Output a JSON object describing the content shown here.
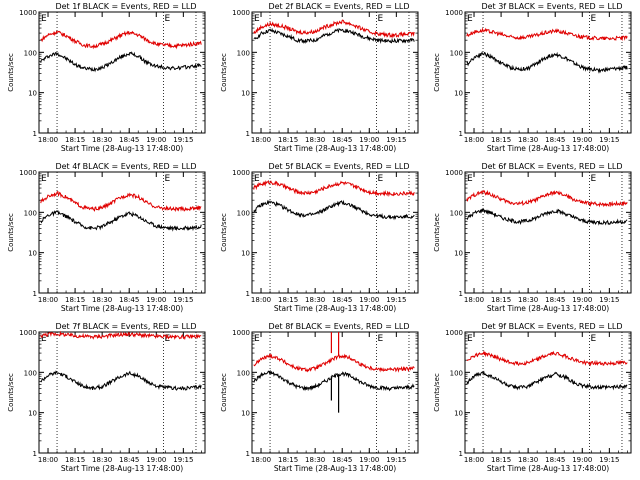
{
  "figure": {
    "type": "multi-panel line plot (3x3 detector rate grid)",
    "start_time_label": "Start Time (28-Aug-13 17:48:00)",
    "ylabel": "Counts/sec",
    "colors": {
      "events": "#000000",
      "lld": "#e00000",
      "axes": "#000000"
    }
  },
  "chart_data": [
    {
      "type": "line",
      "title": "Det 1f BLACK = Events, RED = LLD",
      "marker": "E",
      "xlabel": "Start Time (28-Aug-13 17:48:00)",
      "ylabel": "Counts/sec",
      "xlim": [
        "17:55",
        "19:27"
      ],
      "ylim": [
        1,
        1000
      ],
      "yscale": "log",
      "xticks": [
        "18:00",
        "18:15",
        "18:30",
        "18:45",
        "19:00",
        "19:15"
      ],
      "yticks": [
        "1",
        "10",
        "100",
        "1000"
      ],
      "vlines": [
        "18:05",
        "19:04",
        "19:22"
      ],
      "x": [
        "17:56",
        "18:00",
        "18:05",
        "18:10",
        "18:15",
        "18:20",
        "18:25",
        "18:30",
        "18:35",
        "18:40",
        "18:45",
        "18:50",
        "18:55",
        "19:00",
        "19:05",
        "19:10",
        "19:15",
        "19:20",
        "19:25"
      ],
      "series": [
        {
          "name": "Events",
          "values": [
            60,
            80,
            95,
            70,
            50,
            40,
            38,
            42,
            55,
            75,
            95,
            80,
            55,
            45,
            42,
            40,
            42,
            45,
            48
          ]
        },
        {
          "name": "LLD",
          "values": [
            200,
            270,
            320,
            260,
            190,
            150,
            140,
            160,
            200,
            260,
            310,
            270,
            200,
            160,
            150,
            145,
            150,
            160,
            170
          ]
        }
      ]
    },
    {
      "type": "line",
      "title": "Det 2f BLACK = Events, RED = LLD",
      "marker": "E",
      "xlabel": "Start Time (28-Aug-13 17:48:00)",
      "ylabel": "Counts/sec",
      "xlim": [
        "17:55",
        "19:27"
      ],
      "ylim": [
        1,
        1000
      ],
      "yscale": "log",
      "xticks": [
        "18:00",
        "18:15",
        "18:30",
        "18:45",
        "19:00",
        "19:15"
      ],
      "yticks": [
        "1",
        "10",
        "100",
        "1000"
      ],
      "vlines": [
        "18:05",
        "19:04",
        "19:22"
      ],
      "x": [
        "17:56",
        "18:00",
        "18:05",
        "18:10",
        "18:15",
        "18:20",
        "18:25",
        "18:30",
        "18:35",
        "18:40",
        "18:45",
        "18:50",
        "18:55",
        "19:00",
        "19:05",
        "19:10",
        "19:15",
        "19:20",
        "19:25"
      ],
      "series": [
        {
          "name": "Events",
          "values": [
            200,
            290,
            350,
            300,
            250,
            200,
            190,
            200,
            260,
            320,
            360,
            320,
            260,
            220,
            200,
            190,
            190,
            195,
            200
          ]
        },
        {
          "name": "LLD",
          "values": [
            300,
            420,
            500,
            460,
            400,
            320,
            310,
            330,
            420,
            500,
            580,
            500,
            400,
            320,
            290,
            270,
            270,
            280,
            290
          ]
        }
      ]
    },
    {
      "type": "line",
      "title": "Det 3f BLACK = Events, RED = LLD",
      "marker": "E",
      "xlabel": "Start Time (28-Aug-13 17:48:00)",
      "ylabel": "Counts/sec",
      "xlim": [
        "17:55",
        "19:27"
      ],
      "ylim": [
        1,
        1000
      ],
      "yscale": "log",
      "xticks": [
        "18:00",
        "18:15",
        "18:30",
        "18:45",
        "19:00",
        "19:15"
      ],
      "yticks": [
        "1",
        "10",
        "100",
        "1000"
      ],
      "vlines": [
        "18:05",
        "19:04",
        "19:22"
      ],
      "x": [
        "17:56",
        "18:00",
        "18:05",
        "18:10",
        "18:15",
        "18:20",
        "18:25",
        "18:30",
        "18:35",
        "18:40",
        "18:45",
        "18:50",
        "18:55",
        "19:00",
        "19:05",
        "19:10",
        "19:15",
        "19:20",
        "19:25"
      ],
      "series": [
        {
          "name": "Events",
          "values": [
            50,
            75,
            95,
            75,
            55,
            42,
            38,
            40,
            55,
            75,
            90,
            75,
            55,
            42,
            38,
            36,
            38,
            40,
            42
          ]
        },
        {
          "name": "LLD",
          "values": [
            260,
            320,
            350,
            320,
            280,
            240,
            230,
            240,
            270,
            310,
            340,
            310,
            270,
            240,
            230,
            220,
            220,
            225,
            230
          ]
        }
      ]
    },
    {
      "type": "line",
      "title": "Det 4f BLACK = Events, RED = LLD",
      "marker": "E",
      "xlabel": "Start Time (28-Aug-13 17:48:00)",
      "ylabel": "Counts/sec",
      "xlim": [
        "17:55",
        "19:27"
      ],
      "ylim": [
        1,
        1000
      ],
      "yscale": "log",
      "xticks": [
        "18:00",
        "18:15",
        "18:30",
        "18:45",
        "19:00",
        "19:15"
      ],
      "yticks": [
        "1",
        "10",
        "100",
        "1000"
      ],
      "vlines": [
        "18:05",
        "19:04",
        "19:22"
      ],
      "x": [
        "17:56",
        "18:00",
        "18:05",
        "18:10",
        "18:15",
        "18:20",
        "18:25",
        "18:30",
        "18:35",
        "18:40",
        "18:45",
        "18:50",
        "18:55",
        "19:00",
        "19:05",
        "19:10",
        "19:15",
        "19:20",
        "19:25"
      ],
      "series": [
        {
          "name": "Events",
          "values": [
            60,
            85,
            100,
            80,
            58,
            44,
            40,
            44,
            58,
            78,
            95,
            80,
            58,
            46,
            42,
            40,
            40,
            42,
            45
          ]
        },
        {
          "name": "LLD",
          "values": [
            180,
            250,
            300,
            240,
            170,
            130,
            120,
            130,
            170,
            230,
            280,
            240,
            170,
            135,
            125,
            120,
            120,
            125,
            130
          ]
        }
      ]
    },
    {
      "type": "line",
      "title": "Det 5f BLACK = Events, RED = LLD",
      "marker": "E",
      "xlabel": "Start Time (28-Aug-13 17:48:00)",
      "ylabel": "Counts/sec",
      "xlim": [
        "17:55",
        "19:27"
      ],
      "ylim": [
        1,
        1000
      ],
      "yscale": "log",
      "xticks": [
        "18:00",
        "18:15",
        "18:30",
        "18:45",
        "19:00",
        "19:15"
      ],
      "yticks": [
        "1",
        "10",
        "100",
        "1000"
      ],
      "vlines": [
        "18:05",
        "19:04",
        "19:22"
      ],
      "x": [
        "17:56",
        "18:00",
        "18:05",
        "18:10",
        "18:15",
        "18:20",
        "18:25",
        "18:30",
        "18:35",
        "18:40",
        "18:45",
        "18:50",
        "18:55",
        "19:00",
        "19:05",
        "19:10",
        "19:15",
        "19:20",
        "19:25"
      ],
      "series": [
        {
          "name": "Events",
          "values": [
            110,
            150,
            180,
            150,
            115,
            90,
            85,
            90,
            115,
            150,
            175,
            150,
            115,
            90,
            80,
            76,
            76,
            78,
            80
          ]
        },
        {
          "name": "LLD",
          "values": [
            400,
            500,
            560,
            500,
            400,
            320,
            300,
            320,
            400,
            480,
            540,
            480,
            390,
            320,
            300,
            290,
            290,
            295,
            300
          ]
        }
      ]
    },
    {
      "type": "line",
      "title": "Det 6f BLACK = Events, RED = LLD",
      "marker": "E",
      "xlabel": "Start Time (28-Aug-13 17:48:00)",
      "ylabel": "Counts/sec",
      "xlim": [
        "17:55",
        "19:27"
      ],
      "ylim": [
        1,
        1000
      ],
      "yscale": "log",
      "xticks": [
        "18:00",
        "18:15",
        "18:30",
        "18:45",
        "19:00",
        "19:15"
      ],
      "yticks": [
        "1",
        "10",
        "100",
        "1000"
      ],
      "vlines": [
        "18:05",
        "19:04",
        "19:22"
      ],
      "x": [
        "17:56",
        "18:00",
        "18:05",
        "18:10",
        "18:15",
        "18:20",
        "18:25",
        "18:30",
        "18:35",
        "18:40",
        "18:45",
        "18:50",
        "18:55",
        "19:00",
        "19:05",
        "19:10",
        "19:15",
        "19:20",
        "19:25"
      ],
      "series": [
        {
          "name": "Events",
          "values": [
            70,
            95,
            115,
            95,
            75,
            62,
            58,
            62,
            75,
            95,
            110,
            95,
            75,
            62,
            58,
            56,
            56,
            58,
            60
          ]
        },
        {
          "name": "LLD",
          "values": [
            200,
            270,
            320,
            270,
            210,
            175,
            165,
            175,
            210,
            270,
            310,
            270,
            210,
            175,
            165,
            160,
            160,
            165,
            170
          ]
        }
      ]
    },
    {
      "type": "line",
      "title": "Det 7f BLACK = Events, RED = LLD",
      "marker": "E",
      "xlabel": "Start Time (28-Aug-13 17:48:00)",
      "ylabel": "Counts/sec",
      "xlim": [
        "17:55",
        "19:27"
      ],
      "ylim": [
        1,
        1000
      ],
      "yscale": "log",
      "xticks": [
        "18:00",
        "18:15",
        "18:30",
        "18:45",
        "19:00",
        "19:15"
      ],
      "yticks": [
        "1",
        "10",
        "100",
        "1000"
      ],
      "vlines": [
        "18:05",
        "19:04",
        "19:22"
      ],
      "x": [
        "17:56",
        "18:00",
        "18:05",
        "18:10",
        "18:15",
        "18:20",
        "18:25",
        "18:30",
        "18:35",
        "18:40",
        "18:45",
        "18:50",
        "18:55",
        "19:00",
        "19:05",
        "19:10",
        "19:15",
        "19:20",
        "19:25"
      ],
      "series": [
        {
          "name": "Events",
          "values": [
            60,
            85,
            100,
            80,
            58,
            44,
            40,
            44,
            58,
            78,
            95,
            80,
            58,
            46,
            42,
            40,
            40,
            42,
            45
          ]
        },
        {
          "name": "LLD",
          "values": [
            800,
            880,
            900,
            850,
            800,
            780,
            760,
            780,
            820,
            860,
            880,
            850,
            800,
            780,
            770,
            760,
            760,
            770,
            780
          ]
        }
      ]
    },
    {
      "type": "line",
      "title": "Det 8f BLACK = Events, RED = LLD",
      "marker": "E",
      "xlabel": "Start Time (28-Aug-13 17:48:00)",
      "ylabel": "Counts/sec",
      "xlim": [
        "17:55",
        "19:27"
      ],
      "ylim": [
        1,
        1000
      ],
      "yscale": "log",
      "xticks": [
        "18:00",
        "18:15",
        "18:30",
        "18:45",
        "19:00",
        "19:15"
      ],
      "yticks": [
        "1",
        "10",
        "100",
        "1000"
      ],
      "vlines": [
        "18:05",
        "19:04",
        "19:22"
      ],
      "x": [
        "17:56",
        "18:00",
        "18:05",
        "18:10",
        "18:15",
        "18:20",
        "18:25",
        "18:30",
        "18:35",
        "18:40",
        "18:45",
        "18:50",
        "18:55",
        "19:00",
        "19:05",
        "19:10",
        "19:15",
        "19:20",
        "19:25"
      ],
      "series": [
        {
          "name": "Events",
          "values": [
            60,
            85,
            100,
            80,
            58,
            44,
            40,
            44,
            58,
            78,
            95,
            80,
            58,
            46,
            42,
            40,
            40,
            42,
            45
          ]
        },
        {
          "name": "LLD",
          "values": [
            150,
            210,
            260,
            220,
            160,
            125,
            115,
            125,
            160,
            215,
            260,
            220,
            160,
            130,
            120,
            118,
            118,
            120,
            125
          ]
        }
      ],
      "spikes": [
        {
          "at": "18:39",
          "series": "Events",
          "from": 20,
          "to": 80
        },
        {
          "at": "18:39",
          "series": "LLD",
          "from": 300,
          "to": 1000
        },
        {
          "at": "18:43",
          "series": "Events",
          "from": 10,
          "to": 90
        },
        {
          "at": "18:43",
          "series": "LLD",
          "from": 250,
          "to": 1000
        }
      ]
    },
    {
      "type": "line",
      "title": "Det 9f BLACK = Events, RED = LLD",
      "marker": "E",
      "xlabel": "Start Time (28-Aug-13 17:48:00)",
      "ylabel": "Counts/sec",
      "xlim": [
        "17:55",
        "19:27"
      ],
      "ylim": [
        1,
        1000
      ],
      "yscale": "log",
      "xticks": [
        "18:00",
        "18:15",
        "18:30",
        "18:45",
        "19:00",
        "19:15"
      ],
      "yticks": [
        "1",
        "10",
        "100",
        "1000"
      ],
      "vlines": [
        "18:05",
        "19:04",
        "19:22"
      ],
      "x": [
        "17:56",
        "18:00",
        "18:05",
        "18:10",
        "18:15",
        "18:20",
        "18:25",
        "18:30",
        "18:35",
        "18:40",
        "18:45",
        "18:50",
        "18:55",
        "19:00",
        "19:05",
        "19:10",
        "19:15",
        "19:20",
        "19:25"
      ],
      "series": [
        {
          "name": "Events",
          "values": [
            55,
            80,
            95,
            78,
            58,
            45,
            42,
            45,
            58,
            76,
            92,
            78,
            58,
            46,
            44,
            42,
            42,
            44,
            46
          ]
        },
        {
          "name": "LLD",
          "values": [
            200,
            260,
            300,
            260,
            210,
            175,
            165,
            175,
            210,
            260,
            300,
            260,
            210,
            175,
            170,
            165,
            165,
            170,
            175
          ]
        }
      ]
    }
  ]
}
